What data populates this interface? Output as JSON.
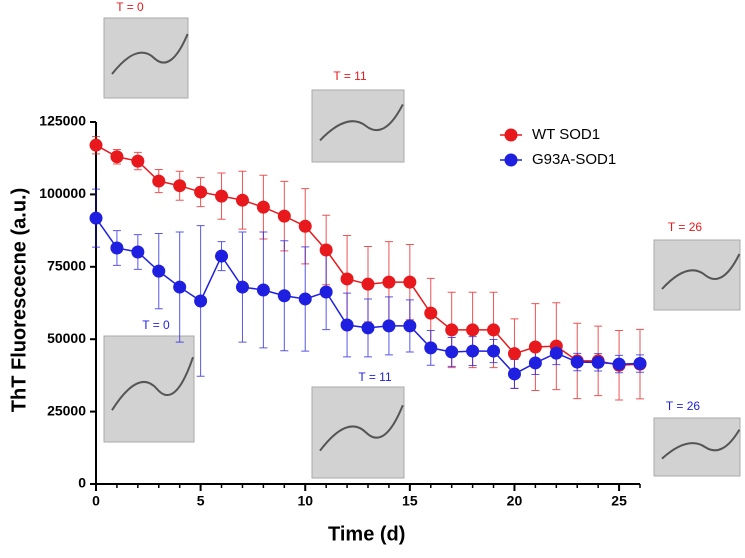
{
  "chart_data": {
    "type": "errorline",
    "xlabel": "Time (d)",
    "ylabel": "ThT Fluorescecne (a.u.)",
    "x": [
      0,
      1,
      2,
      3,
      4,
      5,
      6,
      7,
      8,
      9,
      10,
      11,
      12,
      13,
      14,
      15,
      16,
      17,
      18,
      19,
      20,
      21,
      22,
      23,
      24,
      25,
      26
    ],
    "xlim": [
      0,
      26
    ],
    "xticks": [
      0,
      5,
      10,
      15,
      20,
      25
    ],
    "ylim": [
      0,
      125000
    ],
    "yticks": [
      0,
      25000,
      50000,
      75000,
      100000,
      125000
    ],
    "series": [
      {
        "name": "WT SOD1",
        "color": "#e8191c",
        "values": [
          117000,
          113000,
          111500,
          104600,
          103000,
          100800,
          99400,
          98000,
          95600,
          92500,
          89000,
          80800,
          70800,
          69000,
          69700,
          69700,
          59000,
          53200,
          53200,
          53200,
          45000,
          47300,
          47600,
          42500,
          42500,
          41000,
          41400
        ],
        "errors": [
          3000,
          2500,
          3000,
          4000,
          5000,
          5000,
          8000,
          10000,
          11000,
          12000,
          13000,
          12000,
          15000,
          13000,
          14000,
          13000,
          12000,
          13000,
          13000,
          13000,
          12000,
          15000,
          15000,
          13000,
          12000,
          12000,
          12000
        ]
      },
      {
        "name": "G93A-SOD1",
        "color": "#1f1fe0",
        "values": [
          91800,
          81500,
          80100,
          73500,
          68000,
          63200,
          78700,
          68000,
          67000,
          65000,
          63900,
          66300,
          54900,
          53900,
          54600,
          54600,
          47000,
          45600,
          45900,
          45900,
          38000,
          41800,
          45200,
          42100,
          42000,
          41400,
          41600
        ],
        "errors": [
          10000,
          6000,
          6000,
          13000,
          19000,
          26000,
          5000,
          19000,
          20000,
          19000,
          18000,
          13000,
          11000,
          10000,
          10000,
          9000,
          6000,
          5000,
          5000,
          4000,
          5000,
          4000,
          4000,
          3000,
          3000,
          3000,
          3000
        ]
      }
    ],
    "annotations": [
      {
        "text": "T = 0",
        "color": "#e8191c"
      },
      {
        "text": "T = 11",
        "color": "#e8191c"
      },
      {
        "text": "T = 26",
        "color": "#e8191c"
      },
      {
        "text": "T = 0",
        "color": "#1f1fe0"
      },
      {
        "text": "T = 11",
        "color": "#1f1fe0"
      },
      {
        "text": "T = 26",
        "color": "#1f1fe0"
      }
    ]
  }
}
